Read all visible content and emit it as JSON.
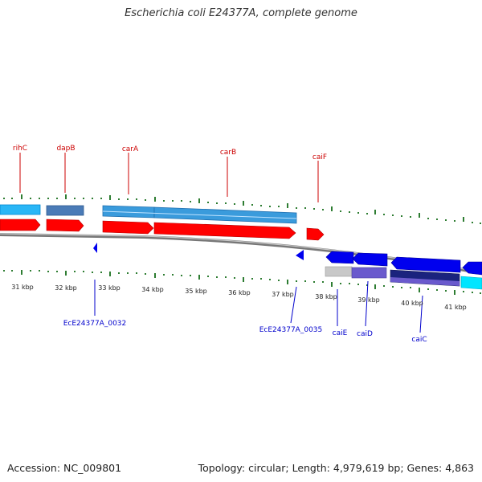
{
  "title": "Escherichia coli E24377A, complete genome",
  "footer": {
    "accession": "Accession: NC_009801",
    "summary": "Topology: circular; Length: 4,979,619 bp; Genes: 4,863"
  },
  "scale_labels": [
    "31 kbp",
    "32 kbp",
    "33 kbp",
    "34 kbp",
    "35 kbp",
    "36 kbp",
    "37 kbp",
    "38 kbp",
    "39 kbp",
    "40 kbp",
    "41 kbp"
  ],
  "top_genes": [
    "rihC",
    "dapB",
    "carA",
    "carB",
    "caiF"
  ],
  "bottom_genes": [
    "EcE24377A_0032",
    "EcE24377A_0035",
    "caiE",
    "caiD",
    "caiC"
  ],
  "colors": {
    "forward_cds": "#ff0000",
    "reverse_cds": "#0000ee",
    "top_label": "#cc0000",
    "bottom_label": "#0000cc",
    "tick": "#2e7d32",
    "feature_light_blue": "#29b6f6",
    "feature_steel_blue": "#4a7bb7",
    "feature_cyan": "#00e5ff",
    "feature_navy": "#1a237e",
    "feature_purple": "#6a5acd",
    "backbone": "#888888"
  }
}
